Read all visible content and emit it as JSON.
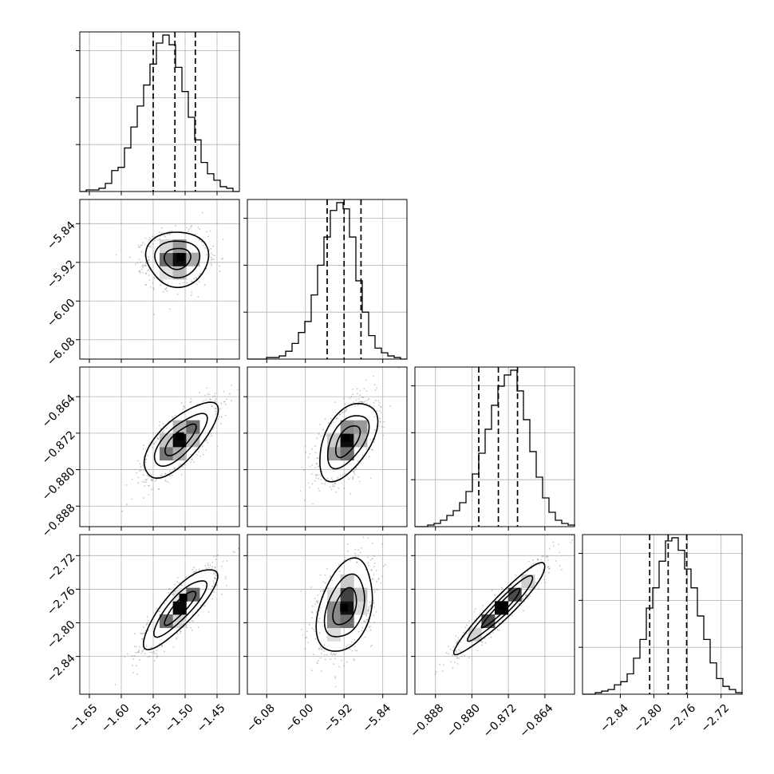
{
  "chart_data": {
    "type": "corner",
    "params": [
      {
        "range": [
          -1.665,
          -1.415
        ],
        "ticks": [
          -1.65,
          -1.6,
          -1.55,
          -1.5,
          -1.45
        ],
        "tick_labels": [
          "−1.65",
          "−1.60",
          "−1.55",
          "−1.50",
          "−1.45"
        ],
        "quantiles": [
          -1.55,
          -1.516,
          -1.484
        ],
        "hist_bins": [
          -1.665,
          -1.655,
          -1.645,
          -1.635,
          -1.625,
          -1.615,
          -1.605,
          -1.595,
          -1.585,
          -1.575,
          -1.565,
          -1.555,
          -1.545,
          -1.535,
          -1.525,
          -1.515,
          -1.505,
          -1.495,
          -1.485,
          -1.475,
          -1.465,
          -1.455,
          -1.445,
          -1.435,
          -1.425,
          -1.415
        ],
        "hist_counts": [
          0,
          1,
          1,
          2,
          5,
          13,
          15,
          27,
          40,
          53,
          66,
          79,
          92,
          97,
          91,
          77,
          62,
          46,
          32,
          18,
          11,
          7,
          3,
          2,
          0
        ]
      },
      {
        "range": [
          -6.12,
          -5.79
        ],
        "ticks": [
          -6.08,
          -6.0,
          -5.92,
          -5.84
        ],
        "tick_labels": [
          "−6.08",
          "−6.00",
          "−5.92",
          "−5.84"
        ],
        "quantiles": [
          -5.955,
          -5.92,
          -5.885
        ],
        "hist_bins": [
          -6.12,
          -6.1068,
          -6.0936,
          -6.0804,
          -6.0672,
          -6.054,
          -6.0408,
          -6.0276,
          -6.0144,
          -6.0012,
          -5.988,
          -5.9748,
          -5.9616,
          -5.9484,
          -5.9352,
          -5.922,
          -5.9088,
          -5.8956,
          -5.8824,
          -5.8692,
          -5.856,
          -5.8428,
          -5.8296,
          -5.8164,
          -5.8032,
          -5.79
        ],
        "hist_counts": [
          0,
          0,
          0,
          1,
          1,
          2,
          5,
          10,
          17,
          24,
          41,
          60,
          78,
          95,
          100,
          96,
          78,
          50,
          30,
          15,
          7,
          4,
          2,
          1,
          0
        ]
      },
      {
        "range": [
          -0.8925,
          -0.8575
        ],
        "ticks": [
          -0.888,
          -0.88,
          -0.872,
          -0.864
        ],
        "tick_labels": [
          "−0.888",
          "−0.880",
          "−0.872",
          "−0.864"
        ],
        "quantiles": [
          -0.8785,
          -0.8742,
          -0.87
        ],
        "hist_bins": [
          -0.8925,
          -0.8911,
          -0.8897,
          -0.8883,
          -0.8869,
          -0.8855,
          -0.8841,
          -0.8827,
          -0.8813,
          -0.8799,
          -0.8785,
          -0.8771,
          -0.8757,
          -0.8743,
          -0.8729,
          -0.8715,
          -0.8701,
          -0.8687,
          -0.8673,
          -0.8659,
          -0.8645,
          -0.8631,
          -0.8617,
          -0.8603,
          -0.8589,
          -0.8575
        ],
        "hist_counts": [
          0,
          0,
          1,
          2,
          4,
          7,
          10,
          15,
          22,
          33,
          46,
          61,
          76,
          88,
          95,
          98,
          85,
          67,
          47,
          31,
          18,
          9,
          4,
          2,
          1
        ]
      },
      {
        "range": [
          -2.885,
          -2.695
        ],
        "ticks": [
          -2.84,
          -2.8,
          -2.76,
          -2.72
        ],
        "tick_labels": [
          "−2.84",
          "−2.80",
          "−2.76",
          "−2.72"
        ],
        "quantiles": [
          -2.805,
          -2.783,
          -2.761
        ],
        "hist_bins": [
          -2.885,
          -2.8774,
          -2.8698,
          -2.8622,
          -2.8546,
          -2.847,
          -2.8394,
          -2.8318,
          -2.8242,
          -2.8166,
          -2.809,
          -2.8014,
          -2.7938,
          -2.7862,
          -2.7786,
          -2.771,
          -2.7634,
          -2.7558,
          -2.7482,
          -2.7406,
          -2.733,
          -2.7254,
          -2.7178,
          -2.7102,
          -2.7026,
          -2.695
        ],
        "hist_counts": [
          0,
          0,
          1,
          2,
          3,
          6,
          8,
          13,
          23,
          35,
          55,
          68,
          85,
          98,
          100,
          92,
          80,
          68,
          50,
          35,
          20,
          10,
          5,
          3,
          1
        ]
      }
    ],
    "pairs": [
      {
        "row": 1,
        "col": 0,
        "center": [
          -1.512,
          -5.912
        ],
        "spread": [
          0.022,
          0.025
        ],
        "corr": 0.05,
        "peak": [
          -1.507,
          -5.909
        ]
      },
      {
        "row": 2,
        "col": 0,
        "center": [
          -1.508,
          -0.8735
        ],
        "spread": [
          0.026,
          0.0038
        ],
        "corr": 0.75,
        "peak": [
          -1.508,
          -0.8727
        ]
      },
      {
        "row": 2,
        "col": 1,
        "center": [
          -5.913,
          -0.8737
        ],
        "spread": [
          0.027,
          0.0039
        ],
        "corr": 0.55,
        "peak": [
          -5.916,
          -0.873
        ]
      },
      {
        "row": 3,
        "col": 0,
        "center": [
          -1.508,
          -2.782
        ],
        "spread": [
          0.026,
          0.022
        ],
        "corr": 0.85,
        "peak": [
          -1.503,
          -2.77
        ]
      },
      {
        "row": 3,
        "col": 1,
        "center": [
          -5.918,
          -2.781
        ],
        "spread": [
          0.026,
          0.025
        ],
        "corr": 0.4,
        "peak": [
          -5.92,
          -2.782
        ]
      },
      {
        "row": 3,
        "col": 2,
        "center": [
          -0.8735,
          -2.782
        ],
        "spread": [
          0.0045,
          0.025
        ],
        "corr": 0.95,
        "peak": [
          -0.8732,
          -2.78
        ]
      }
    ],
    "diag_ticks": [
      0.3,
      0.6,
      0.9
    ],
    "colors": {
      "line": "#000000",
      "grid": "#b0b0b0",
      "points": "#808080"
    },
    "grid": true
  }
}
